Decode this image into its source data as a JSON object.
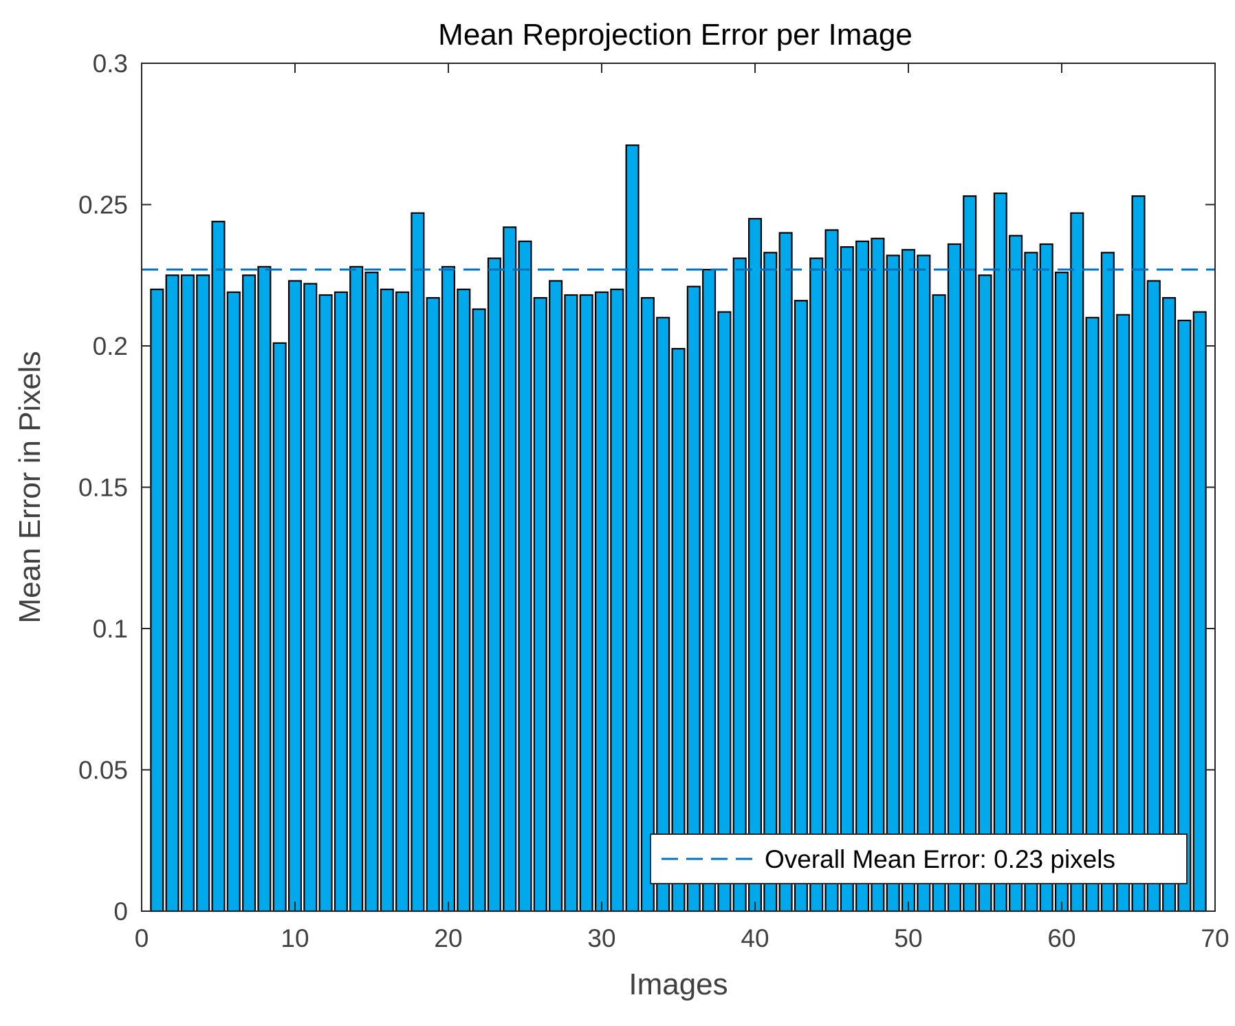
{
  "chart_data": {
    "type": "bar",
    "title": "Mean Reprojection Error per Image",
    "xlabel": "Images",
    "ylabel": "Mean Error in Pixels",
    "xlim": [
      0,
      70
    ],
    "ylim": [
      0,
      0.3
    ],
    "xticks": [
      "0",
      "10",
      "20",
      "30",
      "40",
      "50",
      "60",
      "70"
    ],
    "yticks": [
      "0",
      "0.05",
      "0.1",
      "0.15",
      "0.2",
      "0.25",
      "0.3"
    ],
    "grid": false,
    "bar_color": "#00a8ec",
    "edge_color": "#000000",
    "x": [
      1,
      2,
      3,
      4,
      5,
      6,
      7,
      8,
      9,
      10,
      11,
      12,
      13,
      14,
      15,
      16,
      17,
      18,
      19,
      20,
      21,
      22,
      23,
      24,
      25,
      26,
      27,
      28,
      29,
      30,
      31,
      32,
      33,
      34,
      35,
      36,
      37,
      38,
      39,
      40,
      41,
      42,
      43,
      44,
      45,
      46,
      47,
      48,
      49,
      50,
      51,
      52,
      53,
      54,
      55,
      56,
      57,
      58,
      59,
      60,
      61,
      62,
      63,
      64,
      65,
      66,
      67,
      68,
      69
    ],
    "values": [
      0.22,
      0.225,
      0.225,
      0.225,
      0.244,
      0.219,
      0.225,
      0.228,
      0.201,
      0.223,
      0.222,
      0.218,
      0.219,
      0.228,
      0.226,
      0.22,
      0.219,
      0.247,
      0.217,
      0.228,
      0.22,
      0.213,
      0.231,
      0.242,
      0.237,
      0.217,
      0.223,
      0.218,
      0.218,
      0.219,
      0.22,
      0.271,
      0.217,
      0.21,
      0.199,
      0.221,
      0.227,
      0.212,
      0.231,
      0.245,
      0.233,
      0.24,
      0.216,
      0.231,
      0.241,
      0.235,
      0.237,
      0.238,
      0.232,
      0.234,
      0.232,
      0.218,
      0.236,
      0.253,
      0.225,
      0.254,
      0.239,
      0.233,
      0.236,
      0.226,
      0.247,
      0.21,
      0.233,
      0.211,
      0.253,
      0.223,
      0.217,
      0.209,
      0.212
    ],
    "mean_line": {
      "value": 0.227,
      "label": "Overall Mean Error: 0.23 pixels",
      "color": "#0072bd",
      "style": "dashed"
    },
    "legend": {
      "placement": "bottom-right"
    }
  }
}
